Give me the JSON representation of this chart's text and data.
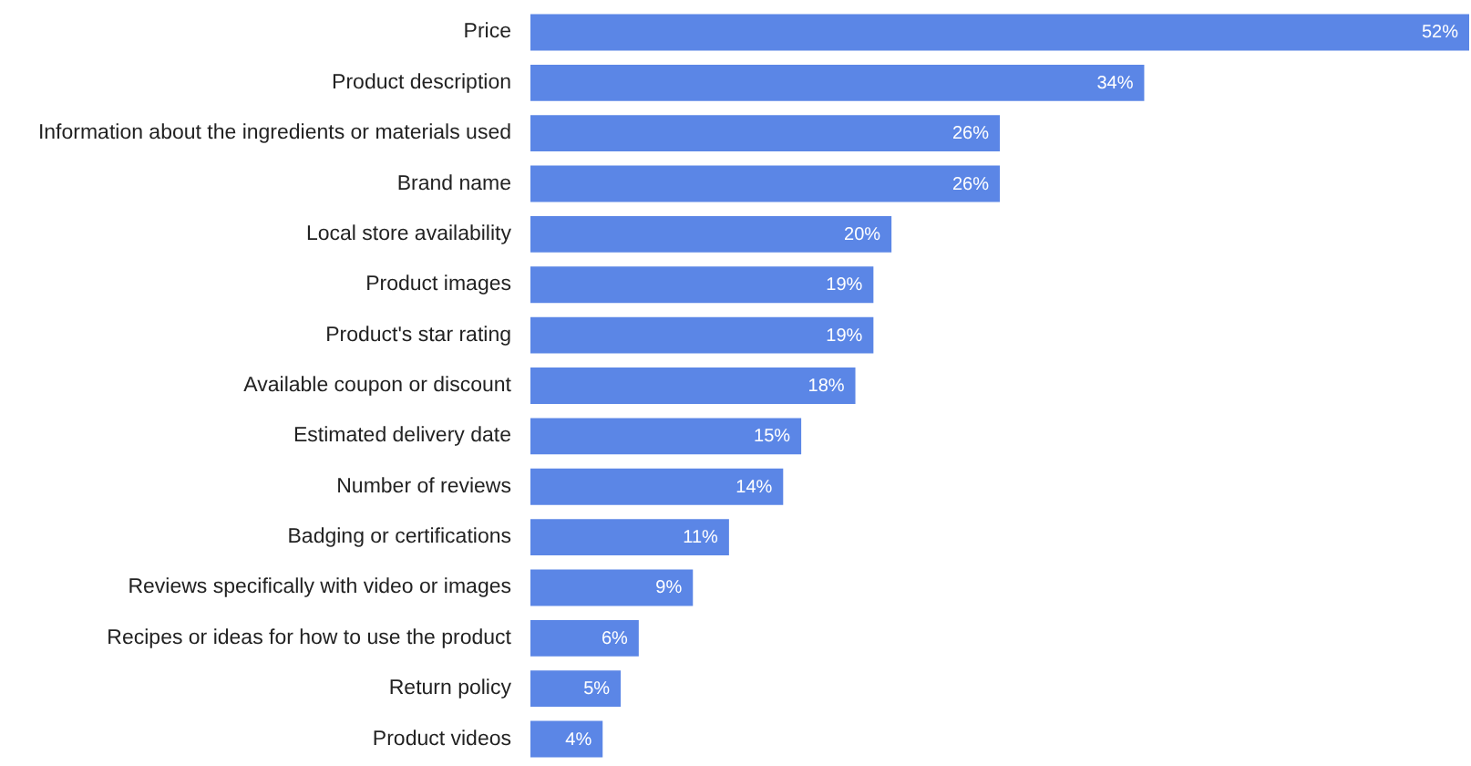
{
  "chart_data": {
    "type": "bar",
    "orientation": "horizontal",
    "tick_labels": "y",
    "categories": [
      "Price",
      "Product description",
      "Information about the ingredients or materials used",
      "Brand name",
      "Local store availability",
      "Product images",
      "Product's star rating",
      "Available coupon or discount",
      "Estimated delivery date",
      "Number of reviews",
      "Badging or certifications",
      "Reviews specifically with video or images",
      "Recipes or ideas for how to use the product",
      "Return policy",
      "Product videos"
    ],
    "values": [
      52,
      34,
      26,
      26,
      20,
      19,
      19,
      18,
      15,
      14,
      11,
      9,
      6,
      5,
      4
    ],
    "value_labels": [
      "52%",
      "34%",
      "26%",
      "26%",
      "20%",
      "19%",
      "19%",
      "18%",
      "15%",
      "14%",
      "11%",
      "9%",
      "6%",
      "5%",
      "4%"
    ],
    "color": "#5b86e6"
  }
}
